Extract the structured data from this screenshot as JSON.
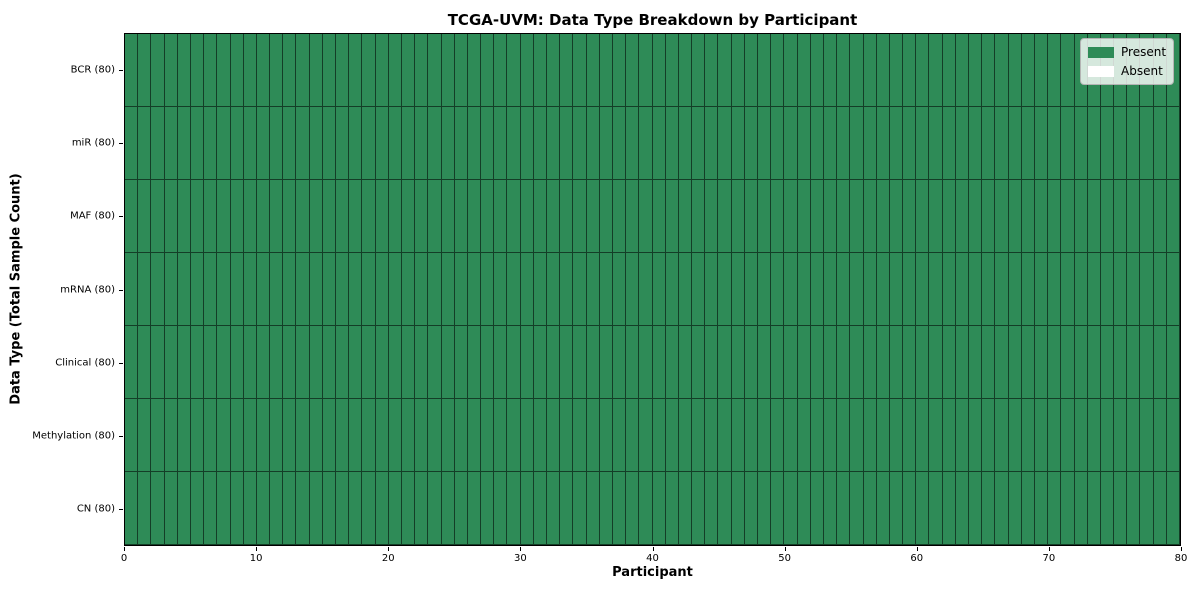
{
  "colors": {
    "present": "#2E8B57",
    "absent": "#FFFFFF",
    "cell_edge": "rgba(0,0,0,0.55)",
    "axis_spine": "#000000",
    "legend_border": "#b4b4b4"
  },
  "chart_data": {
    "type": "heatmap",
    "title": "TCGA-UVM: Data Type Breakdown by Participant",
    "xlabel": "Participant",
    "ylabel": "Data Type (Total Sample Count)",
    "xlim": [
      0,
      80
    ],
    "x_ticks": [
      0,
      10,
      20,
      30,
      40,
      50,
      60,
      70,
      80
    ],
    "n_participants": 80,
    "grid": "off",
    "all_cells_status": "Present",
    "rows": [
      {
        "label": "BCR (80)",
        "present_count": 80,
        "absent_count": 0
      },
      {
        "label": "miR (80)",
        "present_count": 80,
        "absent_count": 0
      },
      {
        "label": "MAF (80)",
        "present_count": 80,
        "absent_count": 0
      },
      {
        "label": "mRNA (80)",
        "present_count": 80,
        "absent_count": 0
      },
      {
        "label": "Clinical (80)",
        "present_count": 80,
        "absent_count": 0
      },
      {
        "label": "Methylation (80)",
        "present_count": 80,
        "absent_count": 0
      },
      {
        "label": "CN (80)",
        "present_count": 80,
        "absent_count": 0
      }
    ],
    "legend": {
      "position": "upper right",
      "entries": [
        {
          "label": "Present",
          "color": "#2E8B57"
        },
        {
          "label": "Absent",
          "color": "#FFFFFF"
        }
      ]
    }
  }
}
